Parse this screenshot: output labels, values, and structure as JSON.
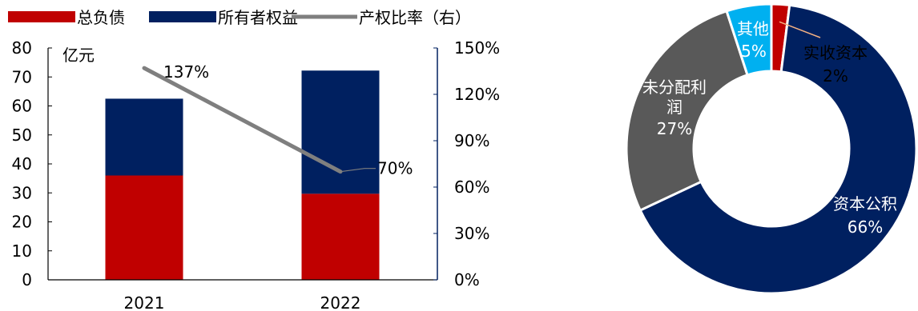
{
  "chart_data": [
    {
      "type": "bar",
      "stacked": true,
      "categories": [
        "2021",
        "2022"
      ],
      "series": [
        {
          "name": "总负债",
          "axis": "left",
          "color": "#C00000",
          "values": [
            36,
            29.7
          ]
        },
        {
          "name": "所有者权益",
          "axis": "left",
          "color": "#002060",
          "values": [
            26.5,
            42.5
          ]
        },
        {
          "name": "产权比率（右）",
          "axis": "right",
          "type": "line",
          "color": "#7F7F7F",
          "values": [
            137,
            70
          ],
          "labels": [
            "137%",
            "70%"
          ]
        }
      ],
      "unit_label": "亿元",
      "ylim": [
        0,
        80
      ],
      "y_ticks": [
        "0",
        "10",
        "20",
        "30",
        "40",
        "50",
        "60",
        "70",
        "80"
      ],
      "y2lim": [
        0,
        150
      ],
      "y2_ticks": [
        "0%",
        "30%",
        "60%",
        "90%",
        "120%",
        "150%"
      ],
      "legend_position": "top",
      "grid": false
    },
    {
      "type": "pie",
      "donut": true,
      "slices": [
        {
          "label": "实收资本",
          "value": 2,
          "display": "2%",
          "color": "#C00000",
          "label_color": "#000000"
        },
        {
          "label": "资本公积",
          "value": 66,
          "display": "66%",
          "color": "#002060",
          "label_color": "#ffffff"
        },
        {
          "label": "未分配利润",
          "label_lines": [
            "未分配利",
            "润"
          ],
          "value": 27,
          "display": "27%",
          "color": "#595959",
          "label_color": "#ffffff"
        },
        {
          "label": "其他",
          "value": 5,
          "display": "5%",
          "color": "#00B0F0",
          "label_color": "#ffffff"
        }
      ]
    }
  ]
}
